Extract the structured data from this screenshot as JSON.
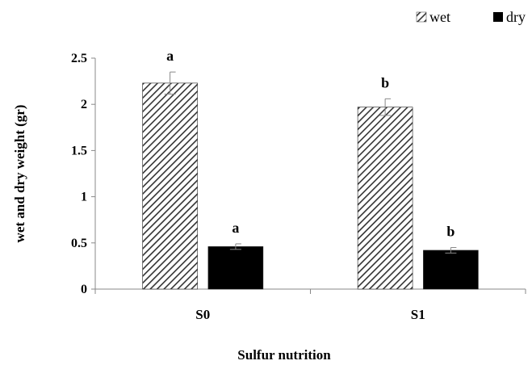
{
  "chart_data": {
    "type": "bar",
    "title": "",
    "xlabel": "Sulfur nutrition",
    "ylabel": "wet and dry weight (gr)",
    "categories": [
      "S0",
      "S1"
    ],
    "ylim": [
      0,
      2.5
    ],
    "yticks": [
      0,
      0.5,
      1,
      1.5,
      2,
      2.5
    ],
    "ytick_labels": [
      "0",
      "0.5",
      "1",
      "1.5",
      "2",
      "2.5"
    ],
    "grid": false,
    "legend_position": "top-right",
    "series": [
      {
        "name": "wet",
        "pattern": "diagonal-hatch",
        "color": "#333333",
        "values": [
          2.23,
          1.97
        ],
        "errors": [
          0.12,
          0.09
        ],
        "significance": [
          "a",
          "b"
        ]
      },
      {
        "name": "dry",
        "pattern": "solid",
        "color": "#000000",
        "values": [
          0.46,
          0.42
        ],
        "errors": [
          0.03,
          0.03
        ],
        "significance": [
          "a",
          "b"
        ]
      }
    ]
  }
}
